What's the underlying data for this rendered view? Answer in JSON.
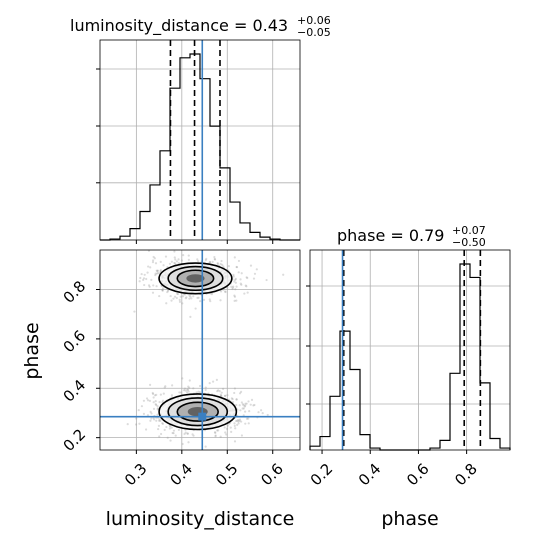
{
  "chart_data": {
    "type": "corner",
    "parameters": [
      "luminosity_distance",
      "phase"
    ],
    "truth": {
      "luminosity_distance": 0.445,
      "phase": 0.285
    },
    "accent_color": "#3a7fc1",
    "panels": [
      {
        "kind": "histogram",
        "parameter": "luminosity_distance",
        "title": {
          "base": "luminosity_distance = 0.43",
          "sup": "+0.06",
          "sub": "−0.05"
        },
        "xlim": [
          0.22,
          0.66
        ],
        "quantiles": [
          0.375,
          0.428,
          0.484
        ],
        "bins": [
          0.22,
          0.242,
          0.264,
          0.286,
          0.308,
          0.33,
          0.352,
          0.374,
          0.396,
          0.418,
          0.44,
          0.462,
          0.484,
          0.506,
          0.528,
          0.55,
          0.572,
          0.594,
          0.616,
          0.638,
          0.66
        ],
        "counts": [
          0.0,
          0.005,
          0.02,
          0.06,
          0.15,
          0.29,
          0.47,
          0.8,
          0.96,
          0.98,
          0.85,
          0.6,
          0.38,
          0.2,
          0.09,
          0.04,
          0.015,
          0.005,
          0.0,
          0.0
        ]
      },
      {
        "kind": "histogram",
        "parameter": "phase",
        "title": {
          "base": "phase = 0.79",
          "sup": "+0.07",
          "sub": "−0.50"
        },
        "xlim": [
          0.15,
          0.98
        ],
        "quantiles": [
          0.29,
          0.79,
          0.857
        ],
        "bins": [
          0.15,
          0.1915,
          0.233,
          0.2745,
          0.316,
          0.3575,
          0.399,
          0.4405,
          0.482,
          0.5235,
          0.565,
          0.6065,
          0.648,
          0.6895,
          0.731,
          0.7725,
          0.814,
          0.8555,
          0.897,
          0.9385,
          0.98
        ],
        "counts": [
          0.02,
          0.07,
          0.28,
          0.62,
          0.42,
          0.08,
          0.01,
          0.0,
          0.0,
          0.0,
          0.0,
          0.0,
          0.01,
          0.05,
          0.4,
          0.97,
          0.9,
          0.35,
          0.06,
          0.01
        ]
      },
      {
        "kind": "density2d",
        "x": "luminosity_distance",
        "y": "phase",
        "xlim": [
          0.22,
          0.66
        ],
        "ylim": [
          0.15,
          0.96
        ],
        "blobs": [
          {
            "cx": 0.43,
            "cy": 0.845,
            "rx": [
              0.08,
              0.06,
              0.04,
              0.02
            ],
            "ry": [
              0.062,
              0.048,
              0.033,
              0.017
            ]
          },
          {
            "cx": 0.435,
            "cy": 0.305,
            "rx": [
              0.085,
              0.065,
              0.045,
              0.022
            ],
            "ry": [
              0.072,
              0.056,
              0.038,
              0.019
            ]
          }
        ]
      }
    ],
    "axes": {
      "luminosity_distance": {
        "label": "luminosity_distance",
        "ticks": [
          0.3,
          0.4,
          0.5,
          0.6
        ],
        "tick_labels": [
          "0.3",
          "0.4",
          "0.5",
          "0.6"
        ]
      },
      "phase": {
        "label": "phase",
        "ticks": [
          0.2,
          0.4,
          0.6,
          0.8
        ],
        "tick_labels": [
          "0.2",
          "0.4",
          "0.6",
          "0.8"
        ]
      }
    },
    "grid": true
  }
}
